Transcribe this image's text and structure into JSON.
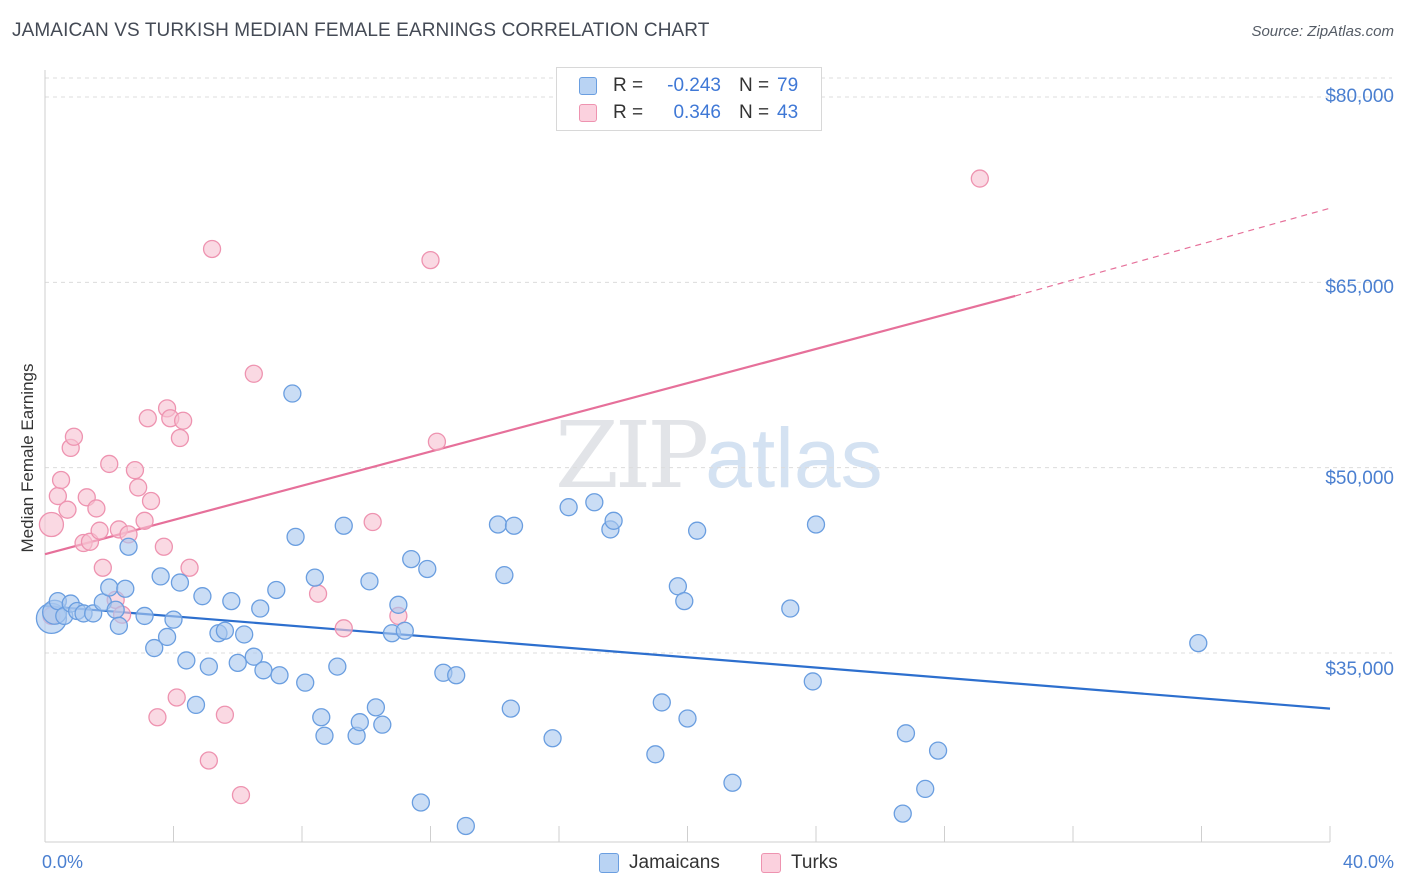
{
  "title": "JAMAICAN VS TURKISH MEDIAN FEMALE EARNINGS CORRELATION CHART",
  "source": "Source: ZipAtlas.com",
  "watermark": {
    "zip": "ZIP",
    "atlas": "atlas"
  },
  "legend": {
    "rows": [
      {
        "series": "Jamaicans",
        "r_label": "R =",
        "r_value": "-0.243",
        "n_label": "N =",
        "n_value": "79"
      },
      {
        "series": "Turks",
        "r_label": "R =",
        "r_value": "0.346",
        "n_label": "N =",
        "n_value": "43"
      }
    ]
  },
  "colors": {
    "jamaicans_fill": "#a9c8ef",
    "jamaicans_stroke": "#6a9ee0",
    "jamaicans_line": "#2d6fce",
    "turks_fill": "#f7c2d2",
    "turks_stroke": "#ee93b0",
    "turks_line": "#e6709a",
    "grid": "#dcdcdc",
    "axis_text": "#4a7fd0"
  },
  "chart_data": {
    "type": "scatter",
    "title": "JAMAICAN VS TURKISH MEDIAN FEMALE EARNINGS CORRELATION CHART",
    "xlabel": "",
    "ylabel": "Median Female Earnings",
    "xlim": [
      0,
      40
    ],
    "ylim": [
      20500,
      82000
    ],
    "x_tick_labels": [
      "0.0%",
      "40.0%"
    ],
    "y_ticks": [
      35000,
      50000,
      65000,
      80000
    ],
    "y_tick_labels": [
      "$35,000",
      "$50,000",
      "$65,000",
      "$80,000"
    ],
    "legend_position": "top-center",
    "series": [
      {
        "name": "Jamaicans",
        "r": -0.243,
        "n": 79,
        "trend": {
          "x": [
            0,
            40
          ],
          "y": [
            38800,
            30500
          ]
        },
        "points": [
          {
            "x": 0.2,
            "y": 37800,
            "s": 3
          },
          {
            "x": 0.3,
            "y": 38300,
            "s": 2
          },
          {
            "x": 0.4,
            "y": 39200,
            "s": 1
          },
          {
            "x": 0.6,
            "y": 38000,
            "s": 1
          },
          {
            "x": 0.8,
            "y": 39000,
            "s": 1
          },
          {
            "x": 1.0,
            "y": 38400,
            "s": 1
          },
          {
            "x": 1.2,
            "y": 38200,
            "s": 1
          },
          {
            "x": 1.5,
            "y": 38200,
            "s": 1
          },
          {
            "x": 1.8,
            "y": 39100,
            "s": 1
          },
          {
            "x": 2.0,
            "y": 40300,
            "s": 1
          },
          {
            "x": 2.2,
            "y": 38500,
            "s": 1
          },
          {
            "x": 2.3,
            "y": 37200,
            "s": 1
          },
          {
            "x": 2.5,
            "y": 40200,
            "s": 1
          },
          {
            "x": 2.6,
            "y": 43600,
            "s": 1
          },
          {
            "x": 3.1,
            "y": 38000,
            "s": 1
          },
          {
            "x": 3.4,
            "y": 35400,
            "s": 1
          },
          {
            "x": 3.6,
            "y": 41200,
            "s": 1
          },
          {
            "x": 3.8,
            "y": 36300,
            "s": 1
          },
          {
            "x": 4.0,
            "y": 37700,
            "s": 1
          },
          {
            "x": 4.2,
            "y": 40700,
            "s": 1
          },
          {
            "x": 4.4,
            "y": 34400,
            "s": 1
          },
          {
            "x": 4.7,
            "y": 30800,
            "s": 1
          },
          {
            "x": 4.9,
            "y": 39600,
            "s": 1
          },
          {
            "x": 5.1,
            "y": 33900,
            "s": 1
          },
          {
            "x": 5.4,
            "y": 36600,
            "s": 1
          },
          {
            "x": 5.6,
            "y": 36800,
            "s": 1
          },
          {
            "x": 5.8,
            "y": 39200,
            "s": 1
          },
          {
            "x": 6.0,
            "y": 34200,
            "s": 1
          },
          {
            "x": 6.2,
            "y": 36500,
            "s": 1
          },
          {
            "x": 6.5,
            "y": 34700,
            "s": 1
          },
          {
            "x": 6.7,
            "y": 38600,
            "s": 1
          },
          {
            "x": 6.8,
            "y": 33600,
            "s": 1
          },
          {
            "x": 7.2,
            "y": 40100,
            "s": 1
          },
          {
            "x": 7.3,
            "y": 33200,
            "s": 1
          },
          {
            "x": 7.7,
            "y": 56000,
            "s": 1
          },
          {
            "x": 7.8,
            "y": 44400,
            "s": 1
          },
          {
            "x": 8.1,
            "y": 32600,
            "s": 1
          },
          {
            "x": 8.4,
            "y": 41100,
            "s": 1
          },
          {
            "x": 8.6,
            "y": 29800,
            "s": 1
          },
          {
            "x": 8.7,
            "y": 28300,
            "s": 1
          },
          {
            "x": 9.1,
            "y": 33900,
            "s": 1
          },
          {
            "x": 9.3,
            "y": 45300,
            "s": 1
          },
          {
            "x": 9.7,
            "y": 28300,
            "s": 1
          },
          {
            "x": 9.8,
            "y": 29400,
            "s": 1
          },
          {
            "x": 10.1,
            "y": 40800,
            "s": 1
          },
          {
            "x": 10.3,
            "y": 30600,
            "s": 1
          },
          {
            "x": 10.5,
            "y": 29200,
            "s": 1
          },
          {
            "x": 10.8,
            "y": 36600,
            "s": 1
          },
          {
            "x": 11.0,
            "y": 38900,
            "s": 1
          },
          {
            "x": 11.2,
            "y": 36800,
            "s": 1
          },
          {
            "x": 11.4,
            "y": 42600,
            "s": 1
          },
          {
            "x": 11.7,
            "y": 22900,
            "s": 1
          },
          {
            "x": 11.9,
            "y": 41800,
            "s": 1
          },
          {
            "x": 12.4,
            "y": 33400,
            "s": 1
          },
          {
            "x": 12.8,
            "y": 33200,
            "s": 1
          },
          {
            "x": 13.1,
            "y": 21000,
            "s": 1
          },
          {
            "x": 14.1,
            "y": 45400,
            "s": 1
          },
          {
            "x": 14.3,
            "y": 41300,
            "s": 1
          },
          {
            "x": 14.5,
            "y": 30500,
            "s": 1
          },
          {
            "x": 14.6,
            "y": 45300,
            "s": 1
          },
          {
            "x": 15.8,
            "y": 28100,
            "s": 1
          },
          {
            "x": 16.3,
            "y": 46800,
            "s": 1
          },
          {
            "x": 17.1,
            "y": 47200,
            "s": 1
          },
          {
            "x": 17.6,
            "y": 45000,
            "s": 1
          },
          {
            "x": 17.7,
            "y": 45700,
            "s": 1
          },
          {
            "x": 19.0,
            "y": 26800,
            "s": 1
          },
          {
            "x": 19.2,
            "y": 31000,
            "s": 1
          },
          {
            "x": 19.7,
            "y": 40400,
            "s": 1
          },
          {
            "x": 19.9,
            "y": 39200,
            "s": 1
          },
          {
            "x": 20.0,
            "y": 29700,
            "s": 1
          },
          {
            "x": 20.3,
            "y": 44900,
            "s": 1
          },
          {
            "x": 21.4,
            "y": 24500,
            "s": 1
          },
          {
            "x": 23.2,
            "y": 38600,
            "s": 1
          },
          {
            "x": 23.9,
            "y": 32700,
            "s": 1
          },
          {
            "x": 24.0,
            "y": 45400,
            "s": 1
          },
          {
            "x": 26.7,
            "y": 22000,
            "s": 1
          },
          {
            "x": 26.8,
            "y": 28500,
            "s": 1
          },
          {
            "x": 27.4,
            "y": 24000,
            "s": 1
          },
          {
            "x": 27.8,
            "y": 27100,
            "s": 1
          },
          {
            "x": 35.9,
            "y": 35800,
            "s": 1
          }
        ]
      },
      {
        "name": "Turks",
        "r": 0.346,
        "n": 43,
        "trend": {
          "x": [
            0,
            30.2
          ],
          "y": [
            43000,
            63900
          ]
        },
        "trend_dashed": {
          "x": [
            30.2,
            40
          ],
          "y": [
            63900,
            71000
          ]
        },
        "points": [
          {
            "x": 0.2,
            "y": 45400,
            "s": 2
          },
          {
            "x": 0.2,
            "y": 38000,
            "s": 1
          },
          {
            "x": 0.4,
            "y": 47700,
            "s": 1
          },
          {
            "x": 0.5,
            "y": 49000,
            "s": 1
          },
          {
            "x": 0.7,
            "y": 46600,
            "s": 1
          },
          {
            "x": 0.8,
            "y": 51600,
            "s": 1
          },
          {
            "x": 0.9,
            "y": 52500,
            "s": 1
          },
          {
            "x": 1.2,
            "y": 43900,
            "s": 1
          },
          {
            "x": 1.3,
            "y": 47600,
            "s": 1
          },
          {
            "x": 1.4,
            "y": 44000,
            "s": 1
          },
          {
            "x": 1.6,
            "y": 46700,
            "s": 1
          },
          {
            "x": 1.7,
            "y": 44900,
            "s": 1
          },
          {
            "x": 1.8,
            "y": 41900,
            "s": 1
          },
          {
            "x": 2.0,
            "y": 50300,
            "s": 1
          },
          {
            "x": 2.2,
            "y": 39300,
            "s": 1
          },
          {
            "x": 2.3,
            "y": 45000,
            "s": 1
          },
          {
            "x": 2.4,
            "y": 38100,
            "s": 1
          },
          {
            "x": 2.6,
            "y": 44600,
            "s": 1
          },
          {
            "x": 2.8,
            "y": 49800,
            "s": 1
          },
          {
            "x": 2.9,
            "y": 48400,
            "s": 1
          },
          {
            "x": 3.1,
            "y": 45700,
            "s": 1
          },
          {
            "x": 3.2,
            "y": 54000,
            "s": 1
          },
          {
            "x": 3.3,
            "y": 47300,
            "s": 1
          },
          {
            "x": 3.5,
            "y": 29800,
            "s": 1
          },
          {
            "x": 3.7,
            "y": 43600,
            "s": 1
          },
          {
            "x": 3.8,
            "y": 54800,
            "s": 1
          },
          {
            "x": 3.9,
            "y": 54000,
            "s": 1
          },
          {
            "x": 4.1,
            "y": 31400,
            "s": 1
          },
          {
            "x": 4.2,
            "y": 52400,
            "s": 1
          },
          {
            "x": 4.3,
            "y": 53800,
            "s": 1
          },
          {
            "x": 4.5,
            "y": 41900,
            "s": 1
          },
          {
            "x": 5.1,
            "y": 26300,
            "s": 1
          },
          {
            "x": 5.2,
            "y": 67700,
            "s": 1
          },
          {
            "x": 5.6,
            "y": 30000,
            "s": 1
          },
          {
            "x": 6.1,
            "y": 23500,
            "s": 1
          },
          {
            "x": 6.5,
            "y": 57600,
            "s": 1
          },
          {
            "x": 8.5,
            "y": 39800,
            "s": 1
          },
          {
            "x": 9.3,
            "y": 37000,
            "s": 1
          },
          {
            "x": 10.2,
            "y": 45600,
            "s": 1
          },
          {
            "x": 11.0,
            "y": 38000,
            "s": 1
          },
          {
            "x": 12.0,
            "y": 66800,
            "s": 1
          },
          {
            "x": 12.2,
            "y": 52100,
            "s": 1
          },
          {
            "x": 29.1,
            "y": 73400,
            "s": 1
          }
        ]
      }
    ]
  }
}
